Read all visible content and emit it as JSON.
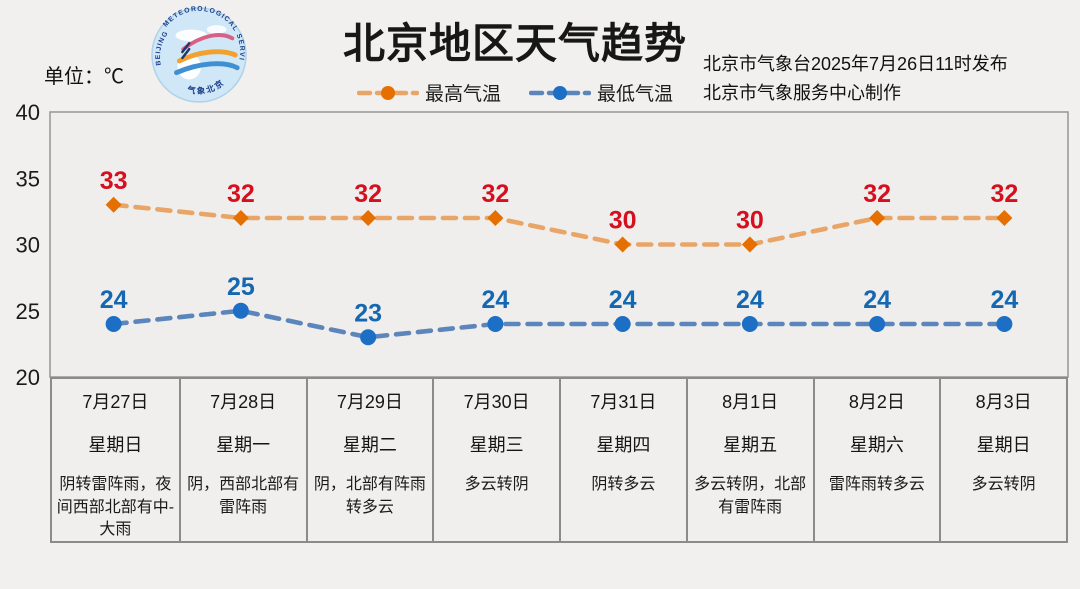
{
  "header": {
    "unit_label": "单位：℃",
    "title": "北京地区天气趋势",
    "source_line1": "北京市气象台2025年7月26日11时发布",
    "source_line2": "北京市气象服务中心制作",
    "logo": {
      "text_top": "METEOROLOGICAL SERVICE",
      "text_left": "BEIJING",
      "text_bottom": "气象北京"
    }
  },
  "legend": [
    {
      "label": "最高气温",
      "marker_color": "#e56f00",
      "line_color": "#e8a567"
    },
    {
      "label": "最低气温",
      "marker_color": "#1c6fc4",
      "line_color": "#5c85bb"
    }
  ],
  "chart_data": {
    "type": "line",
    "title": "北京地区天气趋势",
    "unit": "℃",
    "categories": [
      "7月27日",
      "7月28日",
      "7月29日",
      "7月30日",
      "7月31日",
      "8月1日",
      "8月2日",
      "8月3日"
    ],
    "weekdays": [
      "星期日",
      "星期一",
      "星期二",
      "星期三",
      "星期四",
      "星期五",
      "星期六",
      "星期日"
    ],
    "weather": [
      "阴转雷阵雨，夜间西部北部有中-大雨",
      "阴，西部北部有雷阵雨",
      "阴，北部有阵雨转多云",
      "多云转阴",
      "阴转多云",
      "多云转阴，北部有雷阵雨",
      "雷阵雨转多云",
      "多云转阴"
    ],
    "ylim": [
      20,
      40
    ],
    "yticks": [
      40,
      35,
      30,
      25,
      20
    ],
    "grid": false,
    "legend_position": "top-center",
    "series": [
      {
        "name": "最高气温",
        "values": [
          33,
          32,
          32,
          32,
          30,
          30,
          32,
          32
        ],
        "line_color": "#e8a567",
        "marker_color": "#e56f00",
        "label_color": "#d50f1e",
        "marker": "diamond"
      },
      {
        "name": "最低气温",
        "values": [
          24,
          25,
          23,
          24,
          24,
          24,
          24,
          24
        ],
        "line_color": "#5c85bb",
        "marker_color": "#1c6fc4",
        "label_color": "#1467b0",
        "marker": "circle"
      }
    ],
    "plot_background": "#efeeec",
    "plot_border_color": "#9c9c9c"
  }
}
